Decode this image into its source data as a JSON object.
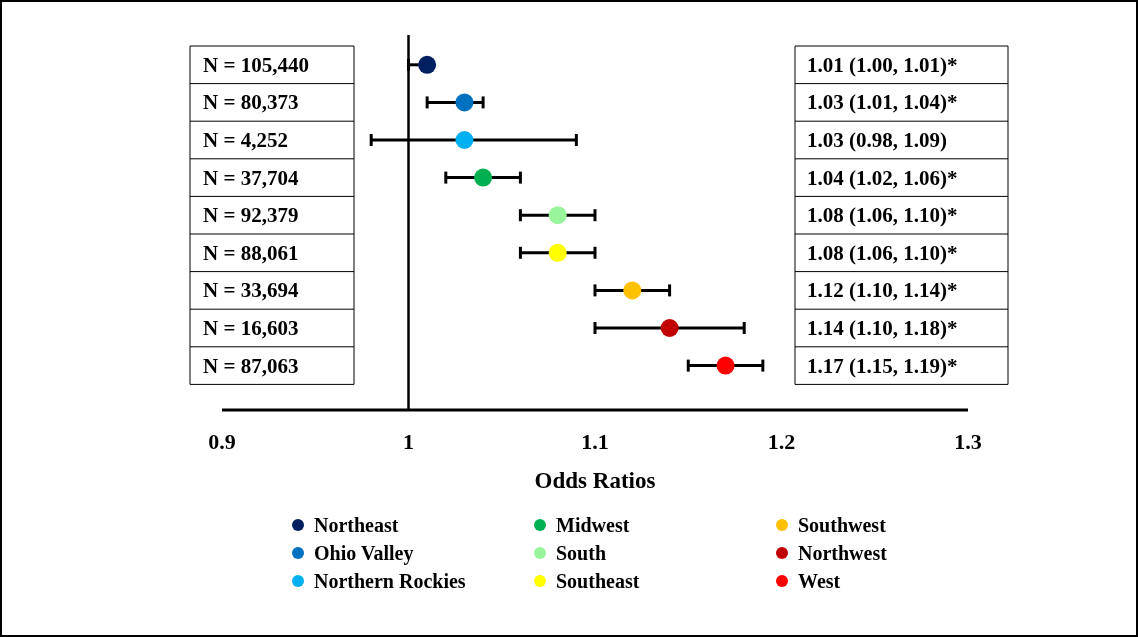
{
  "chart_data": {
    "type": "scatter",
    "orientation": "horizontal",
    "xlabel": "Odds Ratios",
    "categories": [
      "N = 105,440",
      "N = 80,373",
      "N = 4,252",
      "N = 37,704",
      "N = 92,379",
      "N = 88,061",
      "N = 33,694",
      "N = 16,603",
      "N = 87,063"
    ],
    "xlim": [
      0.9,
      1.3
    ],
    "xticks": [
      0.9,
      1,
      1.1,
      1.2,
      1.3
    ],
    "marker": "circle",
    "legend": "bottom",
    "ref_lines": [
      {
        "axis": "x",
        "value": 1
      }
    ],
    "annotations": [
      "1.01 (1.00, 1.01)*",
      "1.03 (1.01, 1.04)*",
      "1.03 (0.98, 1.09)",
      "1.04 (1.02, 1.06)*",
      "1.08 (1.06, 1.10)*",
      "1.08 (1.06, 1.10)*",
      "1.12 (1.10, 1.14)*",
      "1.14 (1.10, 1.18)*",
      "1.17 (1.15, 1.19)*"
    ],
    "series": [
      {
        "name": "Northeast",
        "color": "#002060",
        "values": [
          1.01,
          null,
          null,
          null,
          null,
          null,
          null,
          null,
          null
        ],
        "errors": [
          [
            1.0,
            1.01
          ],
          null,
          null,
          null,
          null,
          null,
          null,
          null,
          null
        ]
      },
      {
        "name": "Ohio Valley",
        "color": "#0070c0",
        "values": [
          null,
          1.03,
          null,
          null,
          null,
          null,
          null,
          null,
          null
        ],
        "errors": [
          null,
          [
            1.01,
            1.04
          ],
          null,
          null,
          null,
          null,
          null,
          null,
          null
        ]
      },
      {
        "name": "Northern Rockies",
        "color": "#00b0f0",
        "values": [
          null,
          null,
          1.03,
          null,
          null,
          null,
          null,
          null,
          null
        ],
        "errors": [
          null,
          null,
          [
            0.98,
            1.09
          ],
          null,
          null,
          null,
          null,
          null,
          null
        ]
      },
      {
        "name": "Midwest",
        "color": "#00b050",
        "values": [
          null,
          null,
          null,
          1.04,
          null,
          null,
          null,
          null,
          null
        ],
        "errors": [
          null,
          null,
          null,
          [
            1.02,
            1.06
          ],
          null,
          null,
          null,
          null,
          null
        ]
      },
      {
        "name": "South",
        "color": "#99f59b",
        "values": [
          null,
          null,
          null,
          null,
          1.08,
          null,
          null,
          null,
          null
        ],
        "errors": [
          null,
          null,
          null,
          null,
          [
            1.06,
            1.1
          ],
          null,
          null,
          null,
          null
        ]
      },
      {
        "name": "Southeast",
        "color": "#ffff00",
        "values": [
          null,
          null,
          null,
          null,
          null,
          1.08,
          null,
          null,
          null
        ],
        "errors": [
          null,
          null,
          null,
          null,
          null,
          [
            1.06,
            1.1
          ],
          null,
          null,
          null
        ]
      },
      {
        "name": "Southwest",
        "color": "#ffc000",
        "values": [
          null,
          null,
          null,
          null,
          null,
          null,
          1.12,
          null,
          null
        ],
        "errors": [
          null,
          null,
          null,
          null,
          null,
          null,
          [
            1.1,
            1.14
          ],
          null,
          null
        ]
      },
      {
        "name": "Northwest",
        "color": "#c00000",
        "values": [
          null,
          null,
          null,
          null,
          null,
          null,
          null,
          1.14,
          null
        ],
        "errors": [
          null,
          null,
          null,
          null,
          null,
          null,
          null,
          [
            1.1,
            1.18
          ],
          null
        ]
      },
      {
        "name": "West",
        "color": "#ff0000",
        "values": [
          null,
          null,
          null,
          null,
          null,
          null,
          null,
          null,
          1.17
        ],
        "errors": [
          null,
          null,
          null,
          null,
          null,
          null,
          null,
          null,
          [
            1.15,
            1.19
          ]
        ]
      }
    ]
  }
}
